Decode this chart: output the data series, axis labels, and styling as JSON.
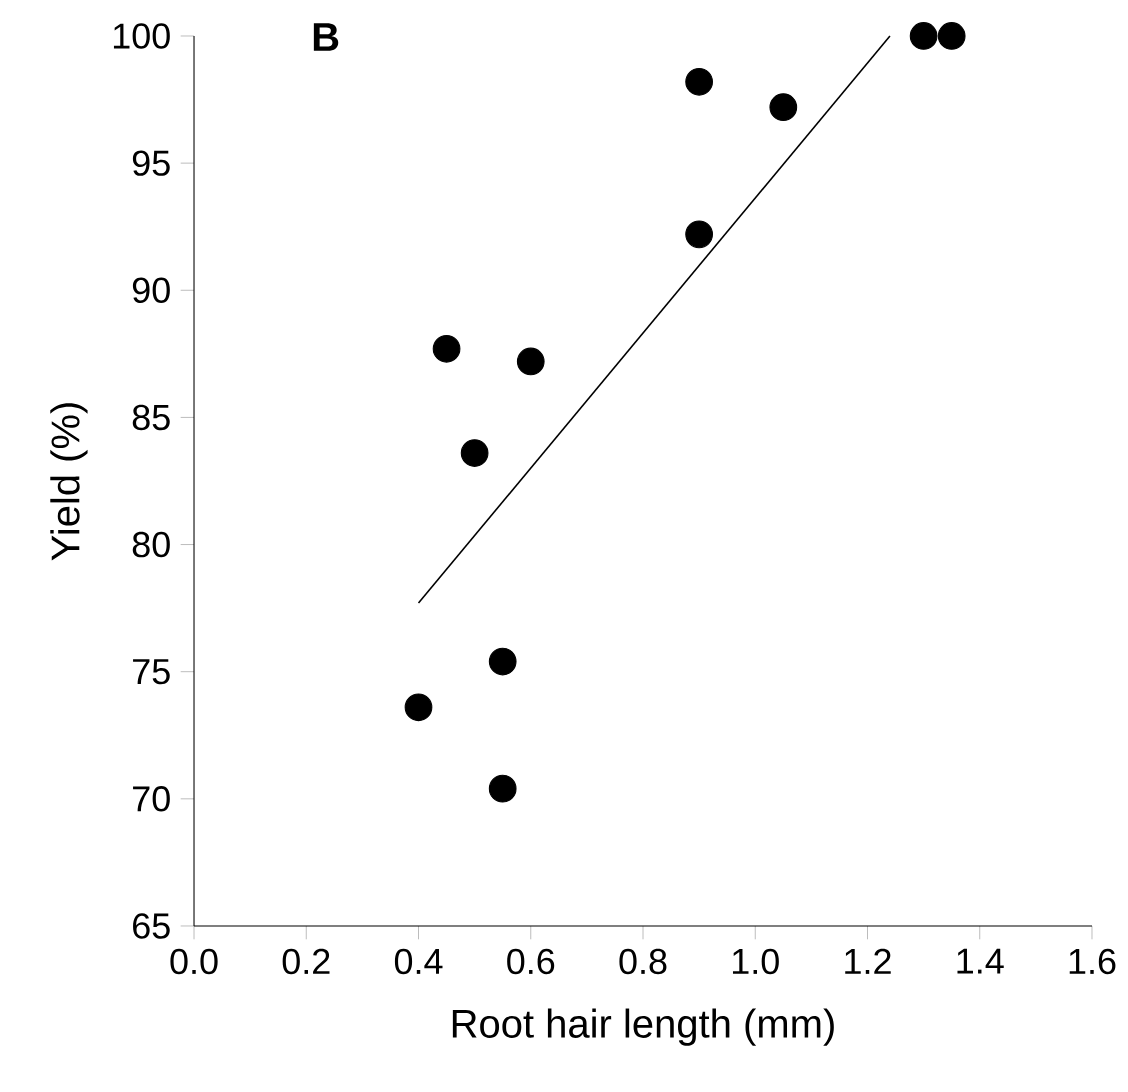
{
  "chart_data": {
    "type": "scatter",
    "xlabel": "Root hair length (mm)",
    "ylabel": "Yield (%)",
    "annotations": [
      "B"
    ],
    "xlim": [
      0.0,
      1.6
    ],
    "ylim": [
      65,
      100
    ],
    "xticks": [
      {
        "value": 0.0,
        "label": "0.0"
      },
      {
        "value": 0.2,
        "label": "0.2"
      },
      {
        "value": 0.4,
        "label": "0.4"
      },
      {
        "value": 0.6,
        "label": "0.6"
      },
      {
        "value": 0.8,
        "label": "0.8"
      },
      {
        "value": 1.0,
        "label": "1.0"
      },
      {
        "value": 1.2,
        "label": "1.2"
      },
      {
        "value": 1.4,
        "label": "1.4"
      },
      {
        "value": 1.6,
        "label": "1.6"
      }
    ],
    "yticks": [
      65,
      70,
      75,
      80,
      85,
      90,
      95,
      100
    ],
    "grid": false,
    "series": [
      {
        "marker": "circle",
        "color": "#000000",
        "x": [
          0.4,
          0.45,
          0.5,
          0.55,
          0.55,
          0.6,
          0.9,
          0.9,
          1.05,
          1.3,
          1.35
        ],
        "values": [
          73.6,
          87.7,
          83.6,
          75.4,
          70.4,
          87.2,
          92.2,
          98.2,
          97.2,
          100,
          100
        ]
      },
      {
        "type": "line",
        "marker": "none",
        "color": "#000000",
        "x": [
          0.4,
          1.24
        ],
        "values": [
          77.7,
          100
        ]
      }
    ]
  }
}
